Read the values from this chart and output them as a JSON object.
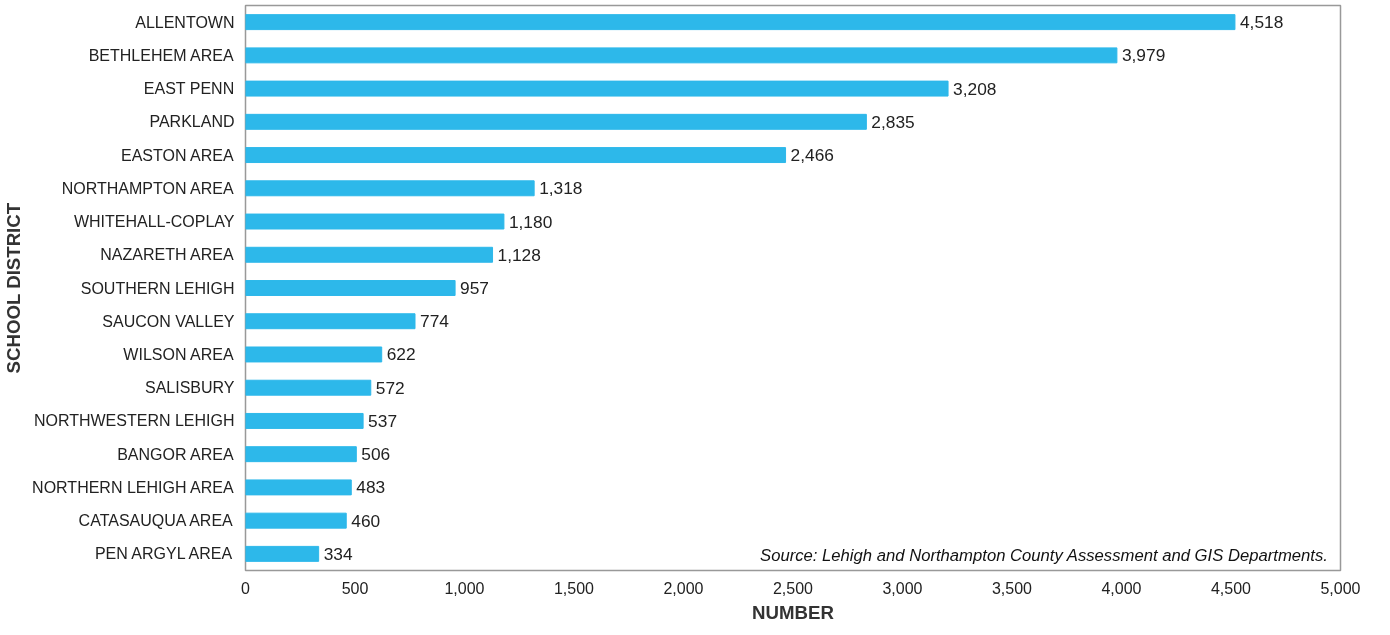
{
  "chart_data": {
    "type": "bar",
    "orientation": "horizontal",
    "categories": [
      "ALLENTOWN",
      "BETHLEHEM AREA",
      "EAST PENN",
      "PARKLAND",
      "EASTON AREA",
      "NORTHAMPTON AREA",
      "WHITEHALL-COPLAY",
      "NAZARETH AREA",
      "SOUTHERN LEHIGH",
      "SAUCON VALLEY",
      "WILSON AREA",
      "SALISBURY",
      "NORTHWESTERN LEHIGH",
      "BANGOR AREA",
      "NORTHERN LEHIGH AREA",
      "CATASAUQUA AREA",
      "PEN ARGYL AREA"
    ],
    "values": [
      4518,
      3979,
      3208,
      2835,
      2466,
      1318,
      1180,
      1128,
      957,
      774,
      622,
      572,
      537,
      506,
      483,
      460,
      334
    ],
    "value_labels": [
      "4,518",
      "3,979",
      "3,208",
      "2,835",
      "2,466",
      "1,318",
      "1,180",
      "1,128",
      "957",
      "774",
      "622",
      "572",
      "537",
      "506",
      "483",
      "460",
      "334"
    ],
    "color": "#2db8ea",
    "xlim": [
      0,
      5000
    ],
    "xticks": [
      0,
      {
        "value": 500,
        "label": "500"
      },
      {
        "value": 1000,
        "label": "1,000"
      },
      {
        "value": 1500,
        "label": "1,500"
      },
      {
        "value": 2000,
        "label": "2,000"
      },
      {
        "value": 2500,
        "label": "2,500"
      },
      {
        "value": 3000,
        "label": "3,000"
      },
      {
        "value": 3500,
        "label": "3,500"
      },
      {
        "value": 4000,
        "label": "4,000"
      },
      {
        "value": 4500,
        "label": "4,500"
      },
      {
        "value": 5000,
        "label": "5,000"
      }
    ],
    "xlabel": "NUMBER",
    "ylabel": "SCHOOL DISTRICT",
    "annotations": [
      "Source: Lehigh and Northampton County Assessment and GIS Departments."
    ],
    "grid": false
  }
}
